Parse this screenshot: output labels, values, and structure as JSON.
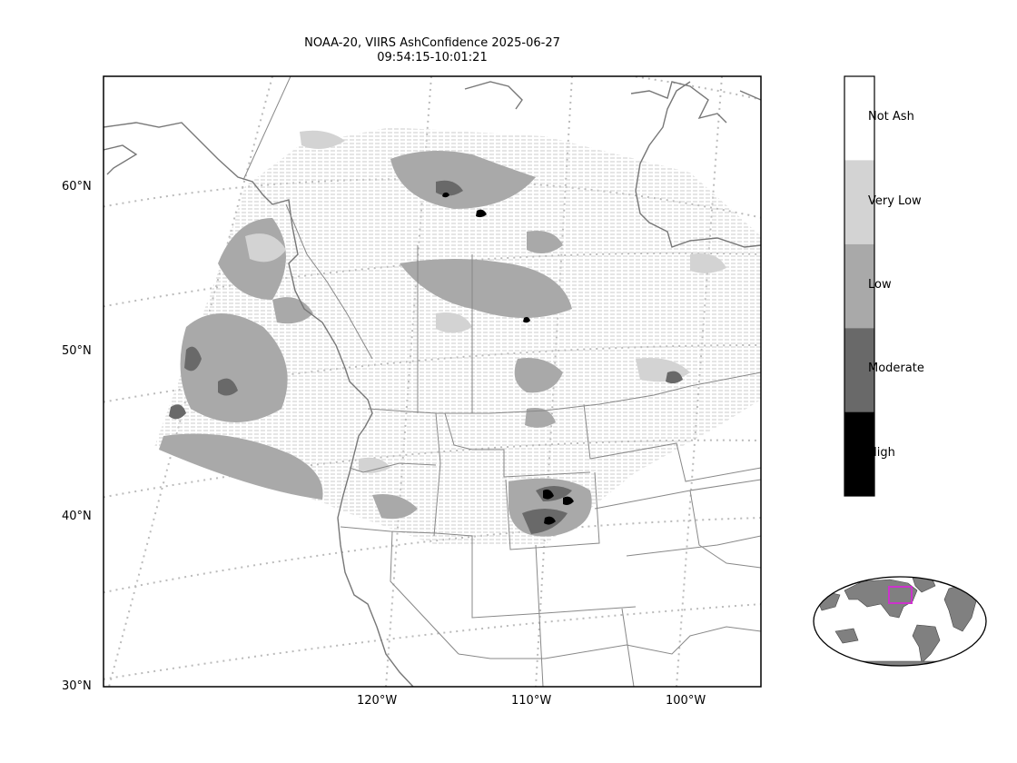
{
  "title": {
    "line1": "NOAA-20, VIIRS AshConfidence 2025-06-27",
    "line2": "09:54:15-10:01:21"
  },
  "lat_labels": [
    "60°N",
    "50°N",
    "40°N",
    "30°N"
  ],
  "lon_labels": [
    "120°W",
    "110°W",
    "100°W"
  ],
  "colorbar": {
    "categories": [
      "Not Ash",
      "Very Low",
      "Low",
      "Moderate",
      "High"
    ],
    "colors": [
      "#ffffff",
      "#d3d3d3",
      "#a9a9a9",
      "#696969",
      "#000000"
    ]
  },
  "inset": {
    "highlight_color": "#cc33cc",
    "land_color": "#808080"
  }
}
